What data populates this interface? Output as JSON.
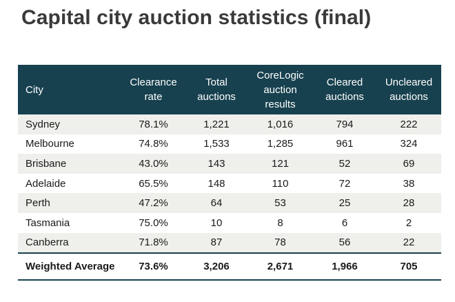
{
  "title": "Capital city auction statistics (final)",
  "table": {
    "headers": [
      [
        "City"
      ],
      [
        "Clearance",
        "rate"
      ],
      [
        "Total",
        "auctions"
      ],
      [
        "CoreLogic",
        "auction",
        "results"
      ],
      [
        "Cleared",
        "auctions"
      ],
      [
        "Uncleared",
        "auctions"
      ]
    ],
    "rows": [
      [
        "Sydney",
        "78.1%",
        "1,221",
        "1,016",
        "794",
        "222"
      ],
      [
        "Melbourne",
        "74.8%",
        "1,533",
        "1,285",
        "961",
        "324"
      ],
      [
        "Brisbane",
        "43.0%",
        "143",
        "121",
        "52",
        "69"
      ],
      [
        "Adelaide",
        "65.5%",
        "148",
        "110",
        "72",
        "38"
      ],
      [
        "Perth",
        "47.2%",
        "64",
        "53",
        "25",
        "28"
      ],
      [
        "Tasmania",
        "75.0%",
        "10",
        "8",
        "6",
        "2"
      ],
      [
        "Canberra",
        "71.8%",
        "87",
        "78",
        "56",
        "22"
      ]
    ],
    "footer": [
      "Weighted Average",
      "73.6%",
      "3,206",
      "2,671",
      "1,966",
      "705"
    ]
  },
  "colors": {
    "header_bg": "#17414f",
    "row_shade": "#efefeb",
    "title_text": "#3a3a3a"
  }
}
